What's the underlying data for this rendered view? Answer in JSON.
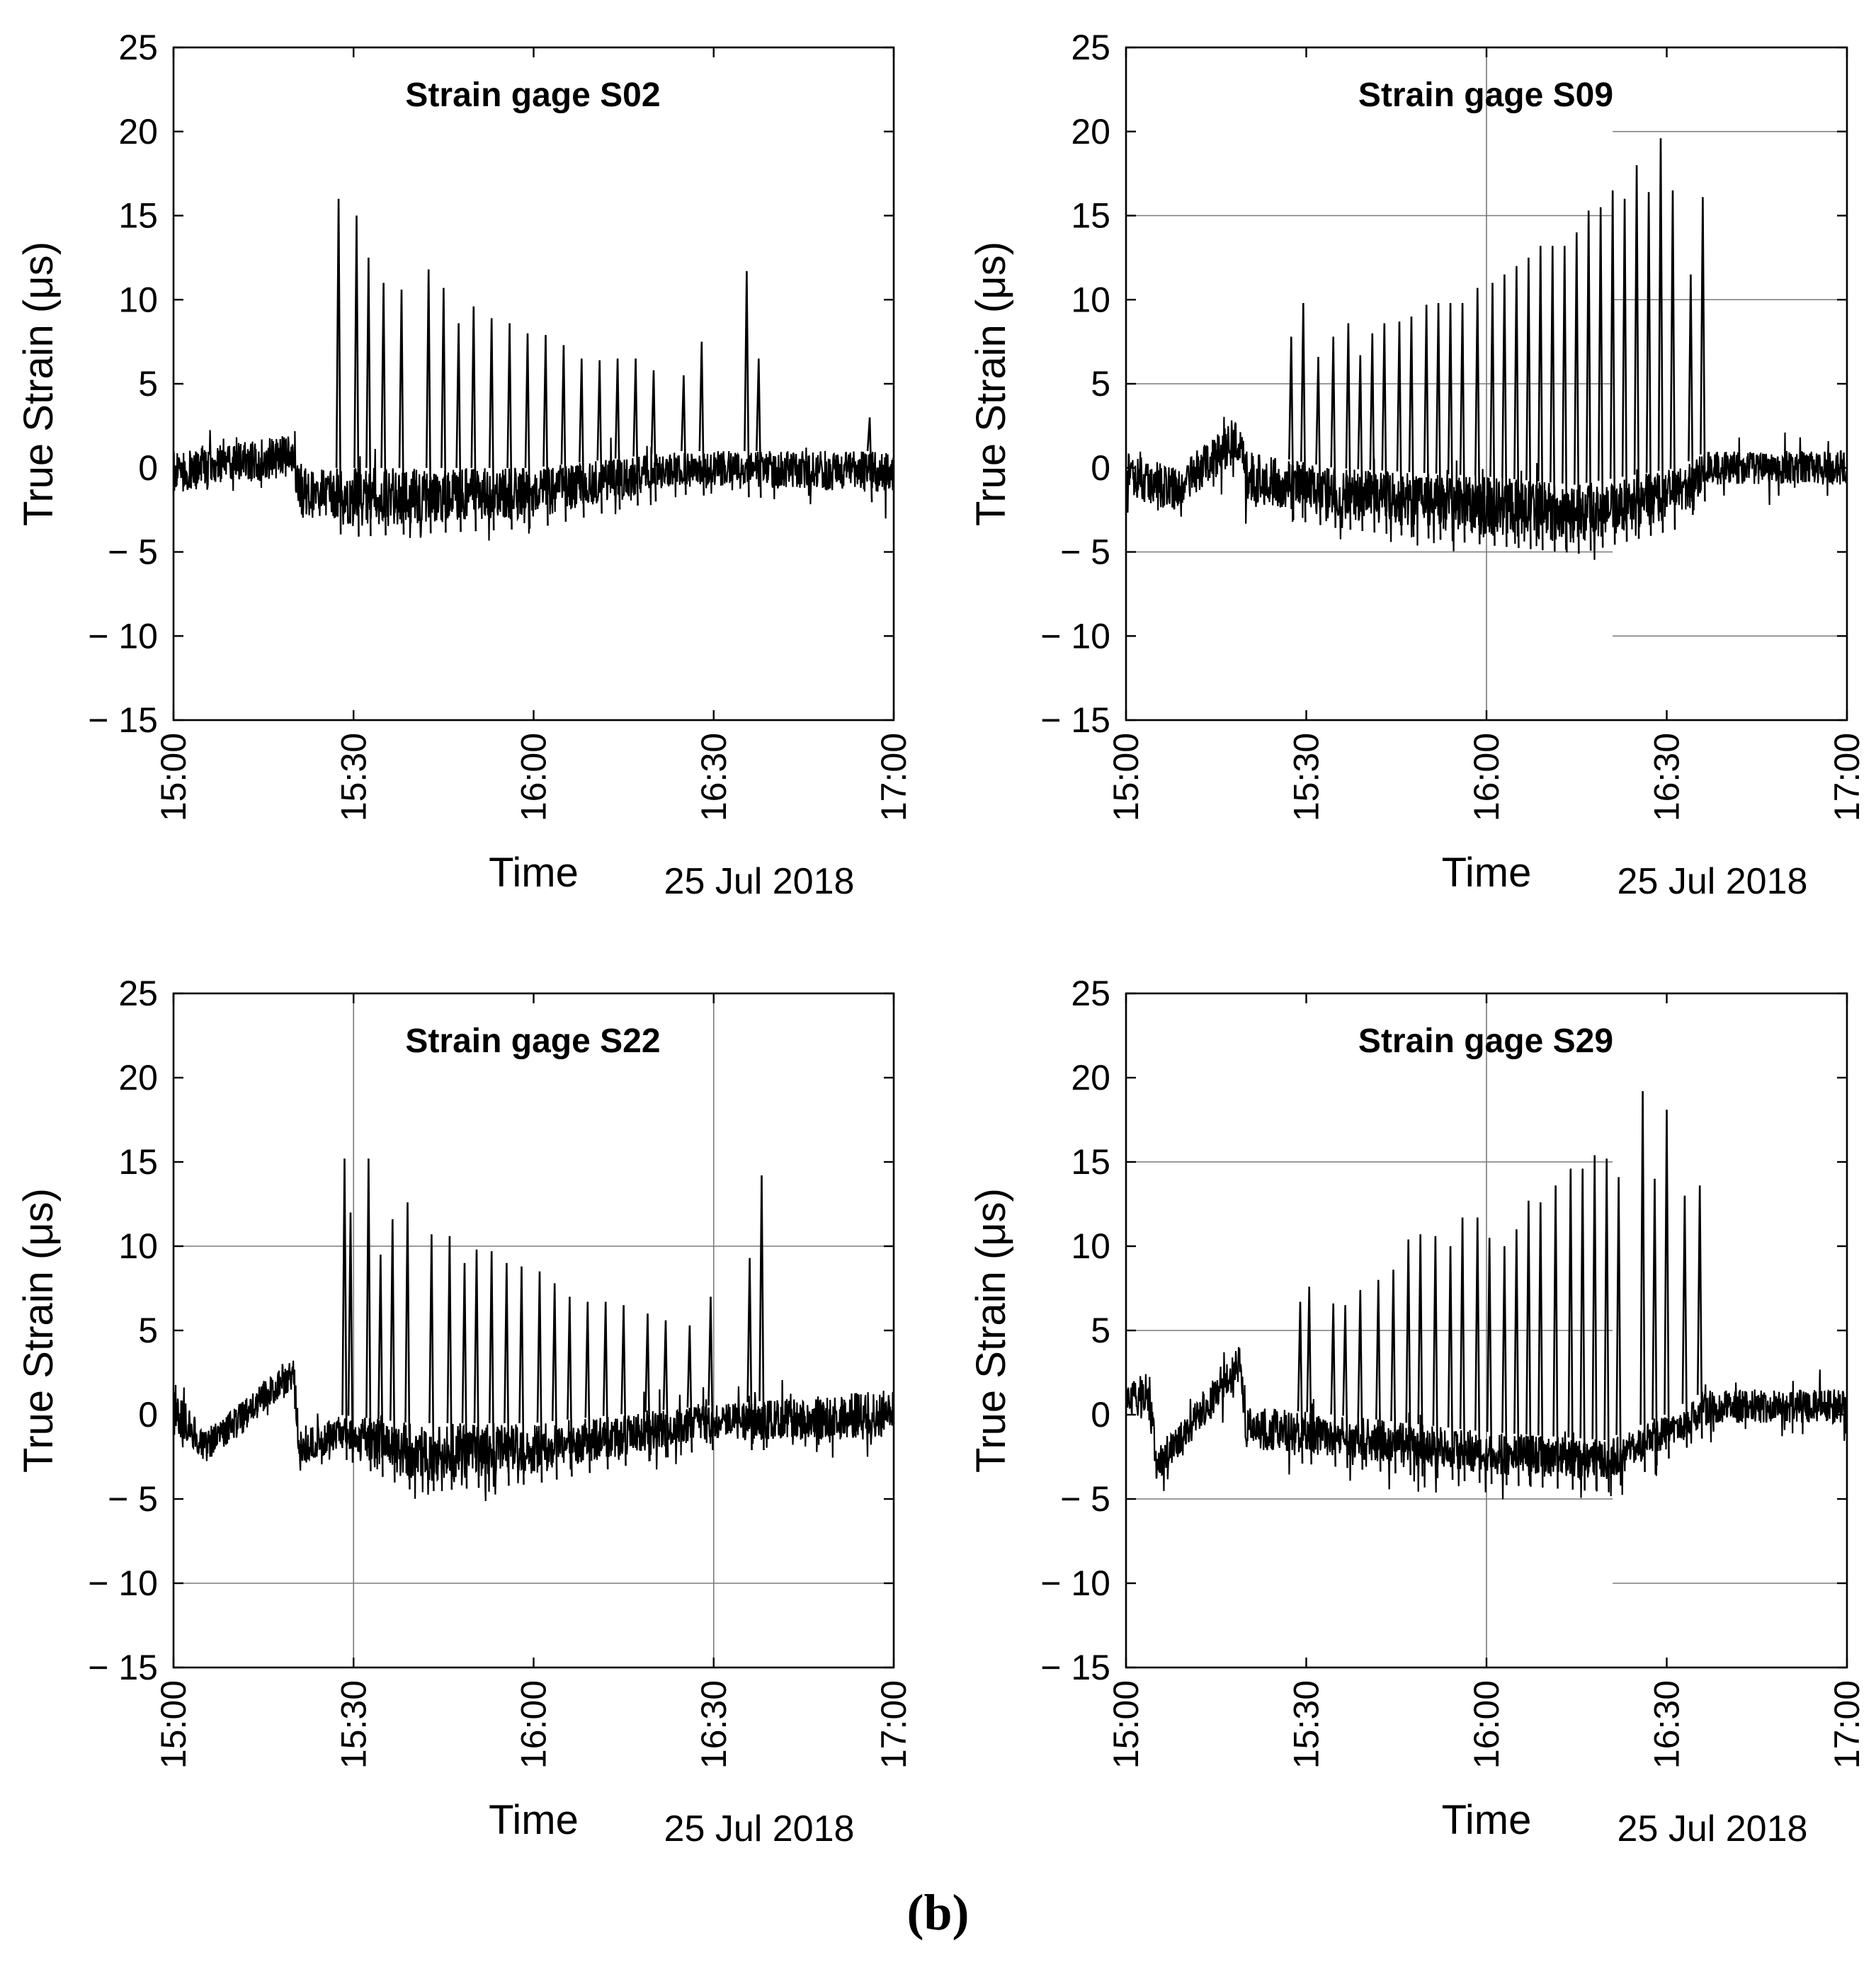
{
  "figure": {
    "caption": "(b)"
  },
  "chart_data": [
    {
      "type": "line",
      "title": "Strain gage S02",
      "xlabel": "Time",
      "ylabel": "True Strain (μs)",
      "date_label": "25 Jul 2018",
      "x_ticks": [
        "15:00",
        "15:30",
        "16:00",
        "16:30",
        "17:00"
      ],
      "y_ticks": [
        "25",
        "20",
        "15",
        "10",
        "5",
        "0",
        "− 5",
        "− 10",
        "− 15"
      ],
      "xlim_minutes": [
        0,
        120
      ],
      "ylim": [
        -15,
        25
      ],
      "gridlines": [],
      "baseline": [
        {
          "t": 0,
          "lo": -1.5,
          "hi": 1.0
        },
        {
          "t": 20,
          "lo": -0.5,
          "hi": 2.0
        },
        {
          "t": 21,
          "lo": -3.0,
          "hi": 0.0
        },
        {
          "t": 30,
          "lo": -3.5,
          "hi": 0.0
        },
        {
          "t": 60,
          "lo": -3.0,
          "hi": 0.0
        },
        {
          "t": 85,
          "lo": -1.0,
          "hi": 1.0
        },
        {
          "t": 120,
          "lo": -1.5,
          "hi": 1.0
        }
      ],
      "peaks": [
        {
          "t": 27.5,
          "v": 16.0
        },
        {
          "t": 30.5,
          "v": 15.0
        },
        {
          "t": 32.5,
          "v": 12.5
        },
        {
          "t": 35,
          "v": 11.0
        },
        {
          "t": 38,
          "v": 10.6
        },
        {
          "t": 42.5,
          "v": 11.8
        },
        {
          "t": 45,
          "v": 10.7
        },
        {
          "t": 47.5,
          "v": 8.6
        },
        {
          "t": 50,
          "v": 9.6
        },
        {
          "t": 53,
          "v": 8.9
        },
        {
          "t": 56,
          "v": 8.6
        },
        {
          "t": 59,
          "v": 8.0
        },
        {
          "t": 62,
          "v": 7.9
        },
        {
          "t": 65,
          "v": 7.3
        },
        {
          "t": 68,
          "v": 6.5
        },
        {
          "t": 71,
          "v": 6.4
        },
        {
          "t": 74,
          "v": 6.5
        },
        {
          "t": 77,
          "v": 6.5
        },
        {
          "t": 80,
          "v": 5.8
        },
        {
          "t": 85,
          "v": 5.5
        },
        {
          "t": 88,
          "v": 7.5
        },
        {
          "t": 95.5,
          "v": 11.7
        },
        {
          "t": 97.5,
          "v": 6.5
        },
        {
          "t": 116,
          "v": 3.0
        }
      ]
    },
    {
      "type": "line",
      "title": "Strain gage S09",
      "xlabel": "Time",
      "ylabel": "True Strain (μs)",
      "date_label": "25 Jul 2018",
      "x_ticks": [
        "15:00",
        "15:30",
        "16:00",
        "16:30",
        "17:00"
      ],
      "y_ticks": [
        "25",
        "20",
        "15",
        "10",
        "5",
        "0",
        "− 5",
        "− 10",
        "− 15"
      ],
      "xlim_minutes": [
        0,
        120
      ],
      "ylim": [
        -15,
        25
      ],
      "gridlines": [
        {
          "orient": "h",
          "y": 15,
          "t0": 0,
          "t1": 81
        },
        {
          "orient": "h",
          "y": 5,
          "t0": 0,
          "t1": 81
        },
        {
          "orient": "h",
          "y": -5,
          "t0": 0,
          "t1": 81
        },
        {
          "orient": "h",
          "y": 20,
          "t0": 81,
          "t1": 120
        },
        {
          "orient": "h",
          "y": 10,
          "t0": 81,
          "t1": 120
        },
        {
          "orient": "h",
          "y": -10,
          "t0": 81,
          "t1": 120
        },
        {
          "orient": "v",
          "t": 60
        }
      ],
      "baseline": [
        {
          "t": 0,
          "lo": -2.0,
          "hi": 1.0
        },
        {
          "t": 8,
          "lo": -2.5,
          "hi": 0.0
        },
        {
          "t": 17,
          "lo": 0.0,
          "hi": 2.5
        },
        {
          "t": 19,
          "lo": 0.5,
          "hi": 2.8
        },
        {
          "t": 20,
          "lo": -2.0,
          "hi": 1.0
        },
        {
          "t": 35,
          "lo": -3.0,
          "hi": 0.0
        },
        {
          "t": 60,
          "lo": -4.0,
          "hi": -0.5
        },
        {
          "t": 75,
          "lo": -4.5,
          "hi": -1.0
        },
        {
          "t": 92,
          "lo": -3.0,
          "hi": 0.0
        },
        {
          "t": 97,
          "lo": -1.0,
          "hi": 1.0
        },
        {
          "t": 120,
          "lo": -1.0,
          "hi": 1.0
        }
      ],
      "peaks": [
        {
          "t": 27.5,
          "v": 7.8
        },
        {
          "t": 29.5,
          "v": 9.8
        },
        {
          "t": 32,
          "v": 6.6
        },
        {
          "t": 34.5,
          "v": 7.8
        },
        {
          "t": 37,
          "v": 8.6
        },
        {
          "t": 39,
          "v": 6.7
        },
        {
          "t": 41,
          "v": 8.0
        },
        {
          "t": 43,
          "v": 8.6
        },
        {
          "t": 45.5,
          "v": 8.7
        },
        {
          "t": 47.5,
          "v": 9.0
        },
        {
          "t": 50,
          "v": 9.7
        },
        {
          "t": 52,
          "v": 9.8
        },
        {
          "t": 54,
          "v": 9.8
        },
        {
          "t": 56,
          "v": 9.8
        },
        {
          "t": 58.5,
          "v": 10.7
        },
        {
          "t": 61,
          "v": 11.0
        },
        {
          "t": 63,
          "v": 11.5
        },
        {
          "t": 65,
          "v": 12.0
        },
        {
          "t": 67,
          "v": 12.5
        },
        {
          "t": 69,
          "v": 13.2
        },
        {
          "t": 71,
          "v": 13.2
        },
        {
          "t": 73,
          "v": 13.2
        },
        {
          "t": 75,
          "v": 14.0
        },
        {
          "t": 77,
          "v": 15.3
        },
        {
          "t": 79,
          "v": 15.5
        },
        {
          "t": 81,
          "v": 16.5
        },
        {
          "t": 83,
          "v": 16.0
        },
        {
          "t": 85,
          "v": 18.0
        },
        {
          "t": 87,
          "v": 16.4
        },
        {
          "t": 89,
          "v": 19.6
        },
        {
          "t": 91,
          "v": 16.5
        },
        {
          "t": 94,
          "v": 11.5
        },
        {
          "t": 96,
          "v": 16.1
        }
      ]
    },
    {
      "type": "line",
      "title": "Strain gage S22",
      "xlabel": "Time",
      "ylabel": "True Strain (μs)",
      "date_label": "25 Jul 2018",
      "x_ticks": [
        "15:00",
        "15:30",
        "16:00",
        "16:30",
        "17:00"
      ],
      "y_ticks": [
        "25",
        "20",
        "15",
        "10",
        "5",
        "0",
        "− 5",
        "− 10",
        "− 15"
      ],
      "xlim_minutes": [
        0,
        120
      ],
      "ylim": [
        -15,
        25
      ],
      "gridlines": [
        {
          "orient": "h",
          "y": 10,
          "t0": 0,
          "t1": 120
        },
        {
          "orient": "h",
          "y": -10,
          "t0": 0,
          "t1": 120
        },
        {
          "orient": "v",
          "t": 30
        },
        {
          "orient": "v",
          "t": 90
        }
      ],
      "baseline": [
        {
          "t": 0,
          "lo": -1.0,
          "hi": 2.0
        },
        {
          "t": 5,
          "lo": -3.0,
          "hi": -1.0
        },
        {
          "t": 12,
          "lo": -1.0,
          "hi": 1.0
        },
        {
          "t": 18,
          "lo": 1.0,
          "hi": 3.0
        },
        {
          "t": 20,
          "lo": 1.5,
          "hi": 3.5
        },
        {
          "t": 21,
          "lo": -3.0,
          "hi": -1.0
        },
        {
          "t": 28,
          "lo": -2.0,
          "hi": 0.0
        },
        {
          "t": 40,
          "lo": -4.0,
          "hi": -0.5
        },
        {
          "t": 60,
          "lo": -3.5,
          "hi": -0.5
        },
        {
          "t": 88,
          "lo": -1.5,
          "hi": 0.5
        },
        {
          "t": 120,
          "lo": -1.5,
          "hi": 1.5
        }
      ],
      "peaks": [
        {
          "t": 28.5,
          "v": 15.2
        },
        {
          "t": 29.5,
          "v": 12.0
        },
        {
          "t": 32.5,
          "v": 15.2
        },
        {
          "t": 34.5,
          "v": 9.5
        },
        {
          "t": 36.5,
          "v": 11.6
        },
        {
          "t": 39,
          "v": 12.6
        },
        {
          "t": 43,
          "v": 10.7
        },
        {
          "t": 46,
          "v": 10.6
        },
        {
          "t": 48.5,
          "v": 9.0
        },
        {
          "t": 50.5,
          "v": 9.8
        },
        {
          "t": 53,
          "v": 9.7
        },
        {
          "t": 55.5,
          "v": 9.0
        },
        {
          "t": 58,
          "v": 8.8
        },
        {
          "t": 61,
          "v": 8.5
        },
        {
          "t": 63.5,
          "v": 7.8
        },
        {
          "t": 66,
          "v": 7.0
        },
        {
          "t": 69,
          "v": 6.7
        },
        {
          "t": 72,
          "v": 6.7
        },
        {
          "t": 75,
          "v": 6.5
        },
        {
          "t": 79,
          "v": 6.0
        },
        {
          "t": 82,
          "v": 5.6
        },
        {
          "t": 86,
          "v": 5.3
        },
        {
          "t": 89.5,
          "v": 7.0
        },
        {
          "t": 96,
          "v": 9.3
        },
        {
          "t": 98,
          "v": 14.2
        }
      ]
    },
    {
      "type": "line",
      "title": "Strain gage S29",
      "xlabel": "Time",
      "ylabel": "True Strain (μs)",
      "date_label": "25 Jul 2018",
      "x_ticks": [
        "15:00",
        "15:30",
        "16:00",
        "16:30",
        "17:00"
      ],
      "y_ticks": [
        "25",
        "20",
        "15",
        "10",
        "5",
        "0",
        "− 5",
        "− 10",
        "− 15"
      ],
      "xlim_minutes": [
        0,
        120
      ],
      "ylim": [
        -15,
        25
      ],
      "gridlines": [
        {
          "orient": "h",
          "y": 15,
          "t0": 0,
          "t1": 81
        },
        {
          "orient": "h",
          "y": 5,
          "t0": 0,
          "t1": 81
        },
        {
          "orient": "h",
          "y": -5,
          "t0": 0,
          "t1": 81
        },
        {
          "orient": "h",
          "y": -10,
          "t0": 81,
          "t1": 120
        },
        {
          "orient": "v",
          "t": 60
        }
      ],
      "baseline": [
        {
          "t": 0,
          "lo": 0.0,
          "hi": 2.0
        },
        {
          "t": 4,
          "lo": -0.5,
          "hi": 2.5
        },
        {
          "t": 5,
          "lo": -4.0,
          "hi": -2.0
        },
        {
          "t": 10,
          "lo": -2.0,
          "hi": 0.0
        },
        {
          "t": 17,
          "lo": 1.0,
          "hi": 3.5
        },
        {
          "t": 19,
          "lo": 2.0,
          "hi": 4.0
        },
        {
          "t": 20,
          "lo": -2.0,
          "hi": 0.5
        },
        {
          "t": 35,
          "lo": -2.5,
          "hi": 0.0
        },
        {
          "t": 60,
          "lo": -3.5,
          "hi": -1.0
        },
        {
          "t": 80,
          "lo": -4.0,
          "hi": -1.5
        },
        {
          "t": 90,
          "lo": -2.0,
          "hi": 0.0
        },
        {
          "t": 97,
          "lo": -0.5,
          "hi": 1.5
        },
        {
          "t": 120,
          "lo": -0.5,
          "hi": 1.5
        }
      ],
      "peaks": [
        {
          "t": 29,
          "v": 6.7
        },
        {
          "t": 30.5,
          "v": 7.6
        },
        {
          "t": 34.5,
          "v": 6.6
        },
        {
          "t": 36.5,
          "v": 6.5
        },
        {
          "t": 39,
          "v": 7.4
        },
        {
          "t": 42,
          "v": 8.0
        },
        {
          "t": 44.5,
          "v": 8.6
        },
        {
          "t": 47,
          "v": 10.4
        },
        {
          "t": 49,
          "v": 10.7
        },
        {
          "t": 51.5,
          "v": 10.6
        },
        {
          "t": 54,
          "v": 10.0
        },
        {
          "t": 56,
          "v": 11.7
        },
        {
          "t": 58.5,
          "v": 11.7
        },
        {
          "t": 60.5,
          "v": 10.5
        },
        {
          "t": 63,
          "v": 10.0
        },
        {
          "t": 65,
          "v": 11.0
        },
        {
          "t": 67,
          "v": 12.7
        },
        {
          "t": 69,
          "v": 12.6
        },
        {
          "t": 71.5,
          "v": 13.6
        },
        {
          "t": 74,
          "v": 14.6
        },
        {
          "t": 76,
          "v": 14.6
        },
        {
          "t": 78,
          "v": 15.4
        },
        {
          "t": 80,
          "v": 15.2
        },
        {
          "t": 82,
          "v": 14.1
        },
        {
          "t": 86,
          "v": 19.2
        },
        {
          "t": 88,
          "v": 14.0
        },
        {
          "t": 90,
          "v": 18.1
        },
        {
          "t": 93,
          "v": 13.0
        },
        {
          "t": 95.5,
          "v": 13.6
        }
      ]
    }
  ]
}
